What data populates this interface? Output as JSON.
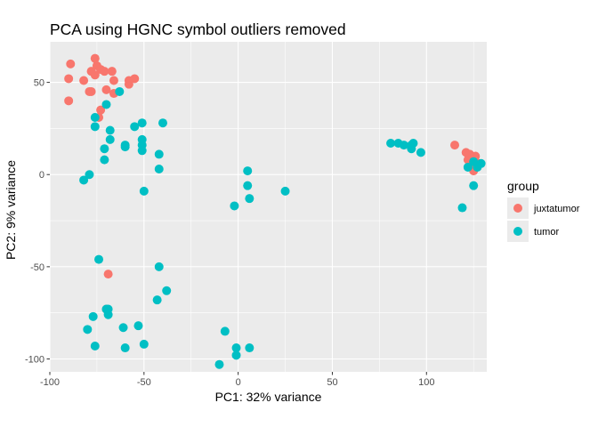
{
  "chart_data": {
    "type": "scatter",
    "title": "PCA using HGNC symbol outliers removed",
    "xlabel": "PC1: 32% variance",
    "ylabel": "PC2: 9% variance",
    "xlim": [
      -100,
      132
    ],
    "ylim": [
      -107,
      72
    ],
    "x_ticks": [
      -100,
      -50,
      0,
      50,
      100
    ],
    "y_ticks": [
      -100,
      -50,
      0,
      50
    ],
    "x_tick_labels": [
      "-100",
      "-50",
      "0",
      "50",
      "100"
    ],
    "y_tick_labels": [
      "-100",
      "-50",
      "0",
      "50"
    ],
    "grid": true,
    "legend_position": "right",
    "legend_title": "group",
    "series": [
      {
        "name": "juxtatumor",
        "color": "#F8766D",
        "points": [
          [
            -76,
            63
          ],
          [
            -89,
            60
          ],
          [
            -75,
            59
          ],
          [
            -73,
            57
          ],
          [
            -78,
            56
          ],
          [
            -71,
            56
          ],
          [
            -67,
            56
          ],
          [
            -76,
            54
          ],
          [
            -90,
            52
          ],
          [
            -82,
            51
          ],
          [
            -55,
            52
          ],
          [
            -58,
            51
          ],
          [
            -66,
            51
          ],
          [
            -58,
            49
          ],
          [
            -78,
            45
          ],
          [
            -79,
            45
          ],
          [
            -70,
            46
          ],
          [
            -90,
            40
          ],
          [
            -73,
            35
          ],
          [
            -74,
            31
          ],
          [
            -66,
            44
          ],
          [
            -69,
            -54
          ],
          [
            -70,
            -73
          ],
          [
            115,
            16
          ],
          [
            121,
            12
          ],
          [
            123,
            11
          ],
          [
            126,
            10
          ],
          [
            125,
            8
          ],
          [
            122,
            8
          ],
          [
            128,
            6
          ],
          [
            126,
            4
          ],
          [
            125,
            2
          ]
        ]
      },
      {
        "name": "tumor",
        "color": "#00BFC4",
        "points": [
          [
            -63,
            45
          ],
          [
            -70,
            38
          ],
          [
            -40,
            28
          ],
          [
            -51,
            28
          ],
          [
            -76,
            31
          ],
          [
            -55,
            26
          ],
          [
            -76,
            26
          ],
          [
            -68,
            24
          ],
          [
            -51,
            19
          ],
          [
            -68,
            19
          ],
          [
            -51,
            16
          ],
          [
            -60,
            16
          ],
          [
            -60,
            15
          ],
          [
            -71,
            14
          ],
          [
            -51,
            13
          ],
          [
            -42,
            11
          ],
          [
            -71,
            8
          ],
          [
            -42,
            3
          ],
          [
            -79,
            0
          ],
          [
            -82,
            -3
          ],
          [
            -50,
            -9
          ],
          [
            5,
            2
          ],
          [
            5,
            -6
          ],
          [
            6,
            -13
          ],
          [
            -2,
            -17
          ],
          [
            25,
            -9
          ],
          [
            81,
            17
          ],
          [
            85,
            17
          ],
          [
            88,
            16
          ],
          [
            92,
            16
          ],
          [
            93,
            17
          ],
          [
            92,
            14
          ],
          [
            97,
            12
          ],
          [
            125,
            7
          ],
          [
            129,
            6
          ],
          [
            122,
            4
          ],
          [
            127,
            4
          ],
          [
            125,
            -6
          ],
          [
            119,
            -18
          ],
          [
            -74,
            -46
          ],
          [
            -42,
            -50
          ],
          [
            -38,
            -63
          ],
          [
            -43,
            -68
          ],
          [
            -69,
            -73
          ],
          [
            -70,
            -73
          ],
          [
            -69,
            -76
          ],
          [
            -77,
            -77
          ],
          [
            -53,
            -82
          ],
          [
            -61,
            -83
          ],
          [
            -80,
            -84
          ],
          [
            -50,
            -92
          ],
          [
            -76,
            -93
          ],
          [
            -60,
            -94
          ],
          [
            -7,
            -85
          ],
          [
            -1,
            -94
          ],
          [
            6,
            -94
          ],
          [
            -1,
            -98
          ],
          [
            -10,
            -103
          ]
        ]
      }
    ]
  }
}
